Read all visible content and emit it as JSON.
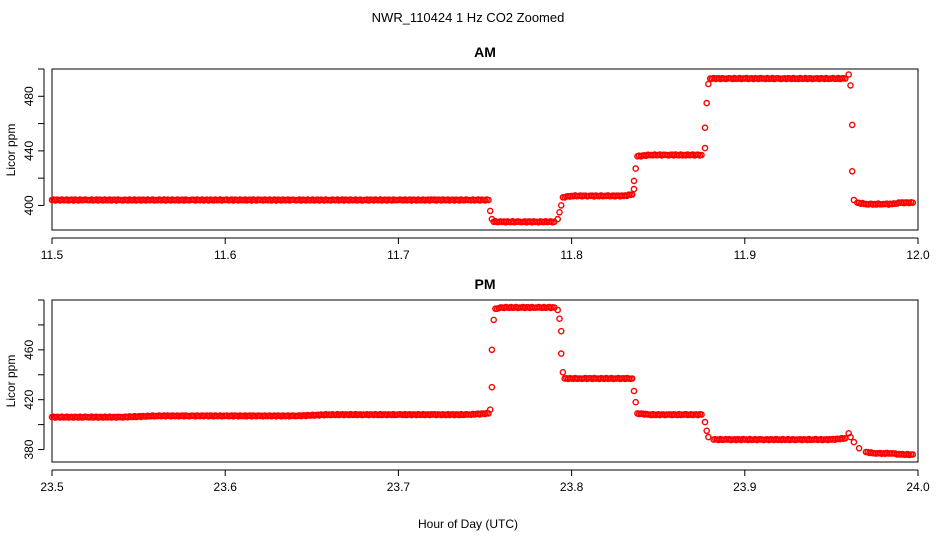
{
  "figure": {
    "title": "NWR_110424  1 Hz CO2 Zoomed",
    "xlabel": "Hour of Day (UTC)"
  },
  "chart_data": [
    {
      "type": "scatter",
      "title": "AM",
      "ylabel": "Licor ppm",
      "marker_color": "#ff0000",
      "xlim": [
        11.5,
        12.0
      ],
      "ylim": [
        382,
        500
      ],
      "xticks": [
        11.5,
        11.6,
        11.7,
        11.8,
        11.9,
        12.0
      ],
      "xtick_labels": [
        "11.5",
        "11.6",
        "11.7",
        "11.8",
        "11.9",
        "12.0"
      ],
      "yticks": [
        400,
        440,
        480
      ],
      "ytick_labels": [
        "400",
        "440",
        "480"
      ],
      "points": [
        [
          11.5,
          404
        ],
        [
          11.52,
          404
        ],
        [
          11.54,
          404
        ],
        [
          11.56,
          404
        ],
        [
          11.58,
          404
        ],
        [
          11.6,
          404
        ],
        [
          11.62,
          404
        ],
        [
          11.64,
          404
        ],
        [
          11.66,
          404
        ],
        [
          11.68,
          404
        ],
        [
          11.7,
          404
        ],
        [
          11.72,
          404
        ],
        [
          11.74,
          404
        ],
        [
          11.752,
          404
        ],
        [
          11.753,
          396
        ],
        [
          11.754,
          390
        ],
        [
          11.755,
          388
        ],
        [
          11.76,
          388
        ],
        [
          11.77,
          388
        ],
        [
          11.78,
          388
        ],
        [
          11.79,
          388
        ],
        [
          11.792,
          390
        ],
        [
          11.793,
          395
        ],
        [
          11.794,
          400
        ],
        [
          11.795,
          406
        ],
        [
          11.8,
          407
        ],
        [
          11.81,
          407
        ],
        [
          11.82,
          407
        ],
        [
          11.83,
          407
        ],
        [
          11.835,
          408
        ],
        [
          11.836,
          412
        ],
        [
          11.836,
          418
        ],
        [
          11.837,
          427
        ],
        [
          11.838,
          436
        ],
        [
          11.845,
          437
        ],
        [
          11.855,
          437
        ],
        [
          11.865,
          437
        ],
        [
          11.875,
          437
        ],
        [
          11.877,
          442
        ],
        [
          11.877,
          457
        ],
        [
          11.878,
          475
        ],
        [
          11.879,
          489
        ],
        [
          11.88,
          493
        ],
        [
          11.89,
          493
        ],
        [
          11.9,
          493
        ],
        [
          11.91,
          493
        ],
        [
          11.92,
          493
        ],
        [
          11.93,
          493
        ],
        [
          11.94,
          493
        ],
        [
          11.95,
          493
        ],
        [
          11.958,
          493
        ],
        [
          11.96,
          496
        ],
        [
          11.961,
          488
        ],
        [
          11.962,
          459
        ],
        [
          11.962,
          425
        ],
        [
          11.963,
          404
        ],
        [
          11.965,
          402
        ],
        [
          11.97,
          401
        ],
        [
          11.975,
          401
        ],
        [
          11.98,
          401
        ],
        [
          11.985,
          401
        ],
        [
          11.99,
          402
        ],
        [
          11.997,
          402
        ]
      ]
    },
    {
      "type": "scatter",
      "title": "PM",
      "ylabel": "Licor ppm",
      "marker_color": "#ff0000",
      "xlim": [
        23.5,
        24.0
      ],
      "ylim": [
        370,
        500
      ],
      "xticks": [
        23.5,
        23.6,
        23.7,
        23.8,
        23.9,
        24.0
      ],
      "xtick_labels": [
        "23.5",
        "23.6",
        "23.7",
        "23.8",
        "23.9",
        "24.0"
      ],
      "yticks": [
        380,
        420,
        460
      ],
      "ytick_labels": [
        "380",
        "420",
        "460"
      ],
      "points": [
        [
          23.5,
          406
        ],
        [
          23.52,
          406
        ],
        [
          23.54,
          406
        ],
        [
          23.56,
          407
        ],
        [
          23.58,
          407
        ],
        [
          23.6,
          407
        ],
        [
          23.62,
          407
        ],
        [
          23.64,
          407
        ],
        [
          23.66,
          408
        ],
        [
          23.68,
          408
        ],
        [
          23.7,
          408
        ],
        [
          23.72,
          408
        ],
        [
          23.74,
          408
        ],
        [
          23.752,
          409
        ],
        [
          23.753,
          412
        ],
        [
          23.754,
          430
        ],
        [
          23.754,
          460
        ],
        [
          23.755,
          484
        ],
        [
          23.756,
          493
        ],
        [
          23.76,
          494
        ],
        [
          23.77,
          494
        ],
        [
          23.78,
          494
        ],
        [
          23.79,
          494
        ],
        [
          23.792,
          492
        ],
        [
          23.793,
          485
        ],
        [
          23.794,
          475
        ],
        [
          23.794,
          457
        ],
        [
          23.795,
          442
        ],
        [
          23.796,
          437
        ],
        [
          23.805,
          437
        ],
        [
          23.815,
          437
        ],
        [
          23.825,
          437
        ],
        [
          23.835,
          437
        ],
        [
          23.836,
          427
        ],
        [
          23.837,
          418
        ],
        [
          23.838,
          409
        ],
        [
          23.845,
          408
        ],
        [
          23.855,
          408
        ],
        [
          23.865,
          408
        ],
        [
          23.875,
          408
        ],
        [
          23.877,
          402
        ],
        [
          23.878,
          395
        ],
        [
          23.879,
          390
        ],
        [
          23.882,
          388
        ],
        [
          23.89,
          388
        ],
        [
          23.9,
          388
        ],
        [
          23.91,
          388
        ],
        [
          23.92,
          388
        ],
        [
          23.93,
          388
        ],
        [
          23.94,
          388
        ],
        [
          23.95,
          388
        ],
        [
          23.958,
          389
        ],
        [
          23.96,
          393
        ],
        [
          23.961,
          390
        ],
        [
          23.963,
          386
        ],
        [
          23.966,
          381
        ],
        [
          23.97,
          378
        ],
        [
          23.975,
          377
        ],
        [
          23.98,
          377
        ],
        [
          23.985,
          377
        ],
        [
          23.99,
          376
        ],
        [
          23.997,
          376
        ]
      ]
    }
  ]
}
